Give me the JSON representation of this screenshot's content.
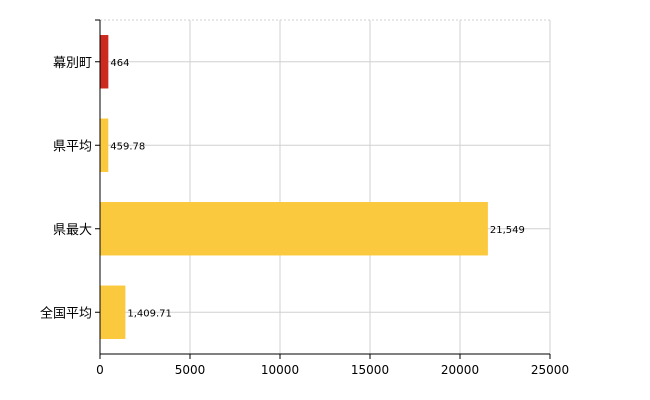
{
  "chart_data": {
    "type": "bar",
    "orientation": "horizontal",
    "categories": [
      "幕別町",
      "県平均",
      "県最大",
      "全国平均"
    ],
    "values": [
      464,
      459.78,
      21549,
      1409.71
    ],
    "data_labels": [
      "464",
      "459.78",
      "21,549",
      "1,409.71"
    ],
    "bar_colors": [
      "#cc2a1e",
      "#fbc93d",
      "#fbc93d",
      "#fbc93d"
    ],
    "xlim": [
      0,
      25000
    ],
    "xticks": [
      0,
      5000,
      10000,
      15000,
      20000,
      25000
    ],
    "xtick_labels": [
      "0",
      "5000",
      "10000",
      "15000",
      "20000",
      "25000"
    ],
    "grid": true,
    "legend": "none",
    "title": "",
    "xlabel": "",
    "ylabel": ""
  }
}
